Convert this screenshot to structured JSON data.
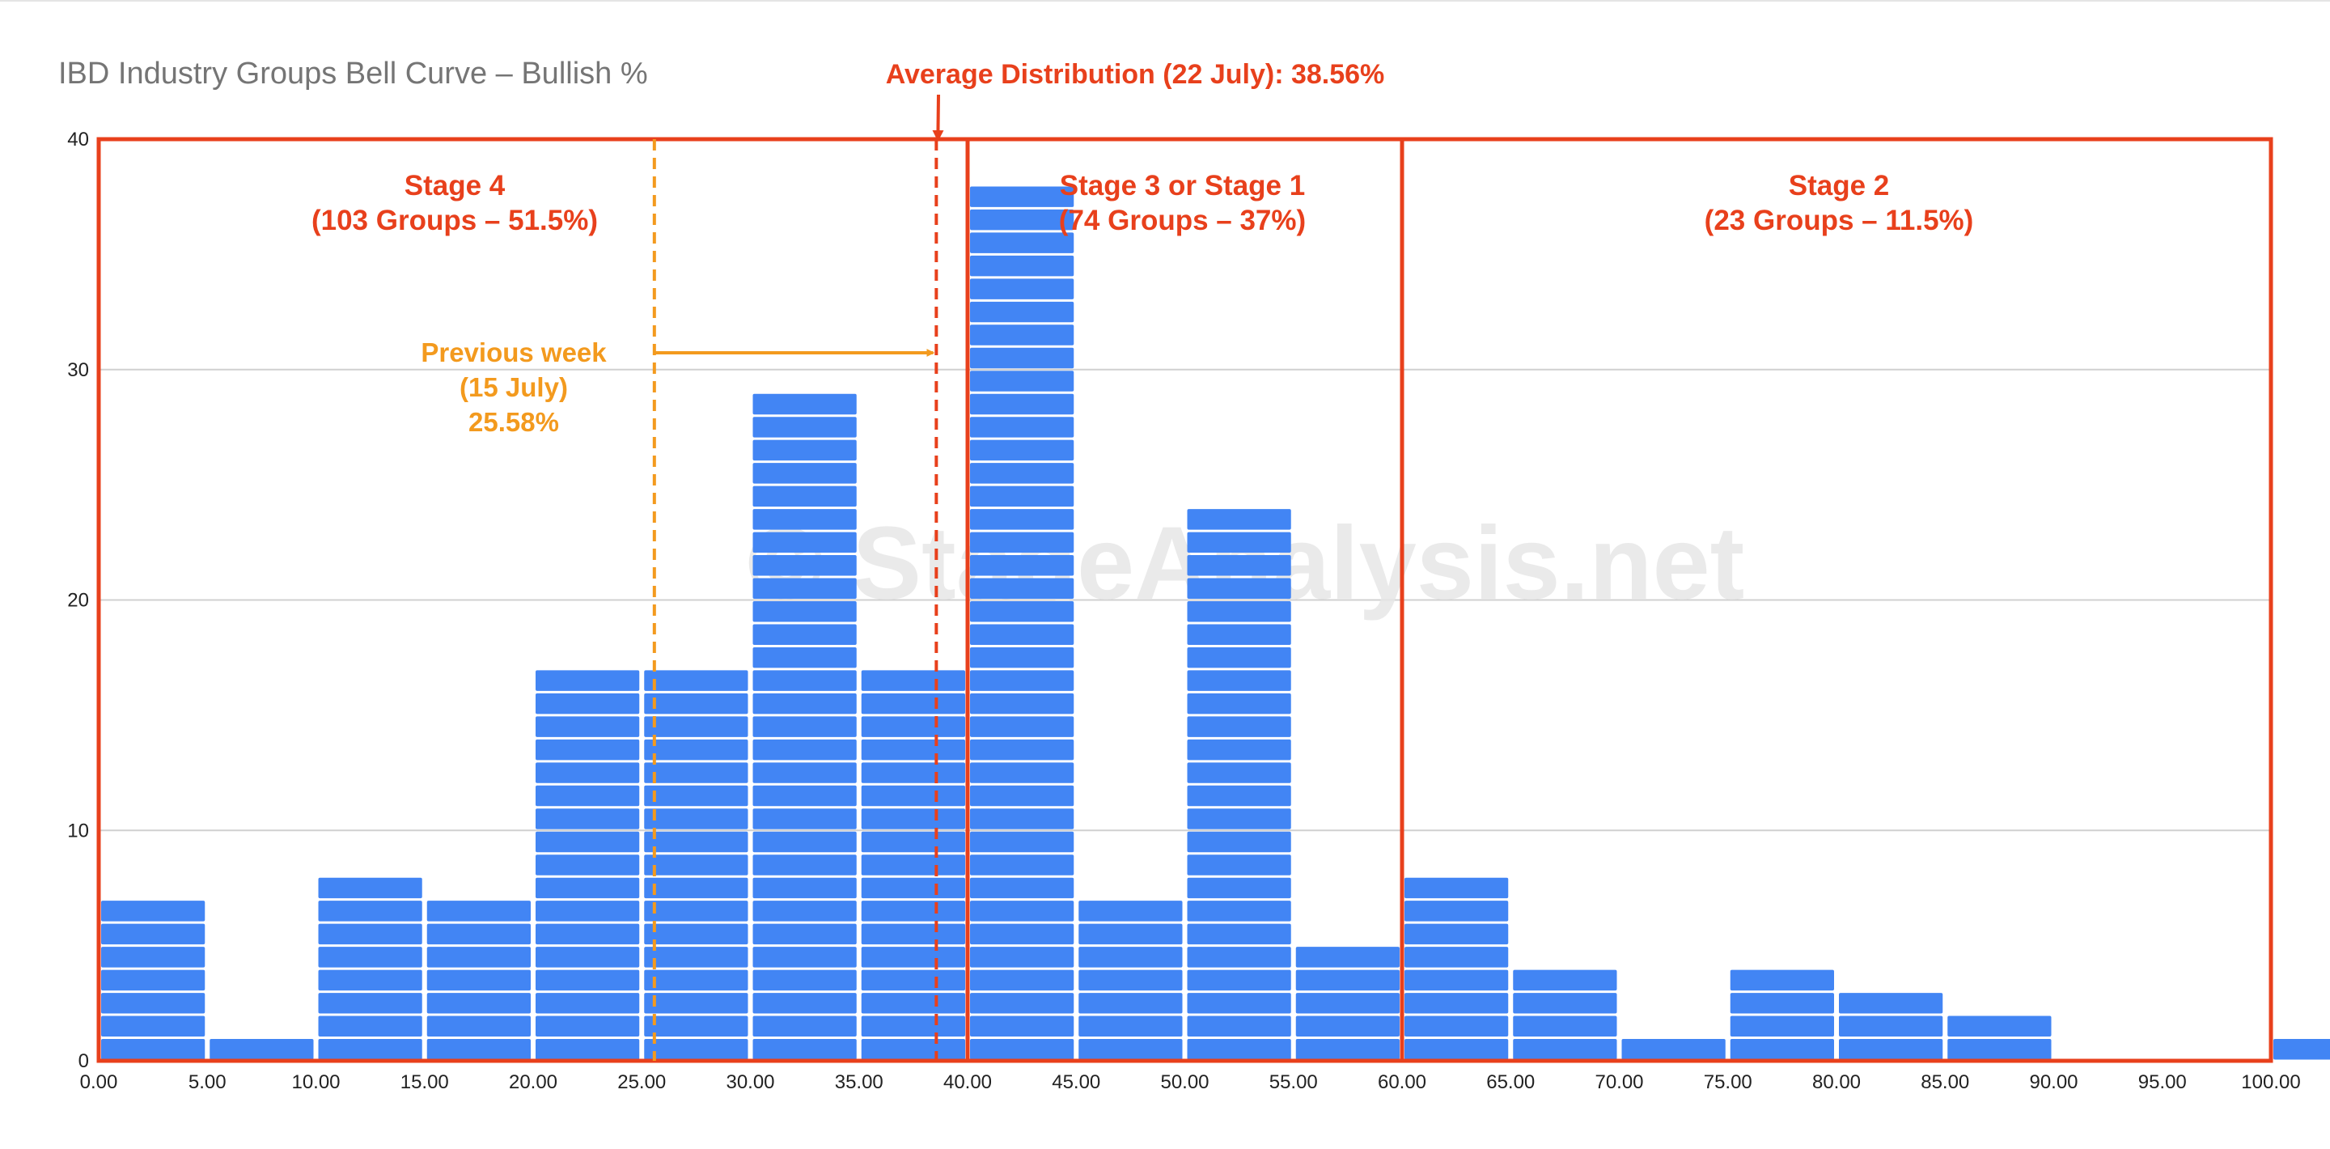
{
  "colors": {
    "bar": "#4285f4",
    "bar_divider": "#ffffff",
    "stage_box": "#e8401c",
    "avg_line": "#e8401c",
    "prev_week": "#f39a1e",
    "grid": "#d0d0d0",
    "title": "#757575",
    "watermark": "#e6e6e6"
  },
  "watermark": "© StageAnalysis.net",
  "annotations": {
    "average": "Average Distribution (22 July): 38.56%",
    "previous_week": [
      "Previous week",
      "(15 July)",
      "25.58%"
    ]
  },
  "stages": [
    {
      "title": "Stage 4",
      "subtitle": "(103 Groups – 51.5%)",
      "from": 0,
      "to": 40
    },
    {
      "title": "Stage 3 or Stage 1",
      "subtitle": "(74 Groups – 37%)",
      "from": 40,
      "to": 60
    },
    {
      "title": "Stage 2",
      "subtitle": "(23 Groups – 11.5%)",
      "from": 60,
      "to": 100
    }
  ],
  "chart_data": {
    "type": "bar",
    "title": "IBD Industry Groups Bell Curve – Bullish %",
    "xlabel": "",
    "ylabel": "",
    "categories": [
      "0.00-5.00",
      "5.00-10.00",
      "10.00-15.00",
      "15.00-20.00",
      "20.00-25.00",
      "25.00-30.00",
      "30.00-35.00",
      "35.00-40.00",
      "40.00-45.00",
      "45.00-50.00",
      "50.00-55.00",
      "55.00-60.00",
      "60.00-65.00",
      "65.00-70.00",
      "70.00-75.00",
      "75.00-80.00",
      "80.00-85.00",
      "85.00-90.00",
      "90.00-95.00",
      "95.00-100.00",
      "100.00"
    ],
    "bin_starts": [
      0,
      5,
      10,
      15,
      20,
      25,
      30,
      35,
      40,
      45,
      50,
      55,
      60,
      65,
      70,
      75,
      80,
      85,
      90,
      95,
      100
    ],
    "values": [
      7,
      1,
      8,
      7,
      17,
      17,
      29,
      17,
      38,
      7,
      24,
      5,
      8,
      4,
      1,
      4,
      3,
      2,
      0,
      0,
      1
    ],
    "xlim": [
      0,
      100
    ],
    "ylim": [
      0,
      40
    ],
    "x_ticks": [
      "0.00",
      "5.00",
      "10.00",
      "15.00",
      "20.00",
      "25.00",
      "30.00",
      "35.00",
      "40.00",
      "45.00",
      "50.00",
      "55.00",
      "60.00",
      "65.00",
      "70.00",
      "75.00",
      "80.00",
      "85.00",
      "90.00",
      "95.00",
      "100.00"
    ],
    "y_ticks": [
      0,
      10,
      20,
      30,
      40
    ],
    "grid": true,
    "legend": "none",
    "average_value": 38.56,
    "previous_week_value": 25.58
  }
}
